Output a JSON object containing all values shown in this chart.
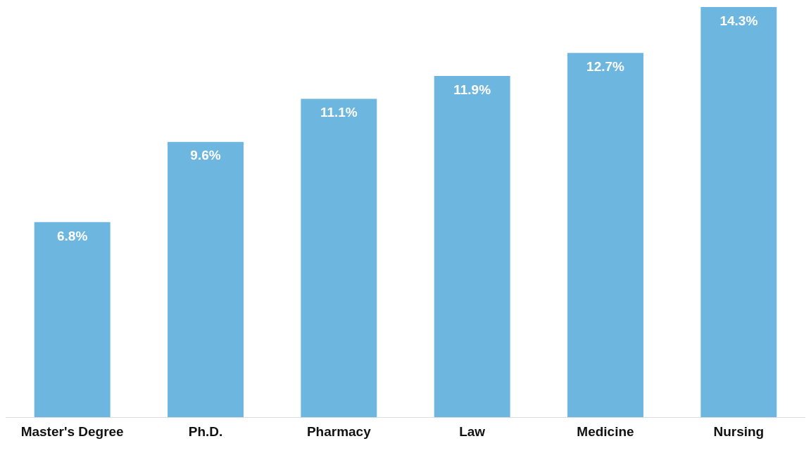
{
  "chart_data": {
    "type": "bar",
    "categories": [
      "Master's Degree",
      "Ph.D.",
      "Pharmacy",
      "Law",
      "Medicine",
      "Nursing"
    ],
    "values": [
      6.8,
      9.6,
      11.1,
      11.9,
      12.7,
      14.3
    ],
    "value_labels": [
      "6.8%",
      "9.6%",
      "11.1%",
      "11.9%",
      "12.7%",
      "14.3%"
    ],
    "color": "#6cb6e0",
    "ylim": [
      0,
      14.3
    ],
    "tick_labels": "x",
    "grid": false,
    "legend": false
  }
}
